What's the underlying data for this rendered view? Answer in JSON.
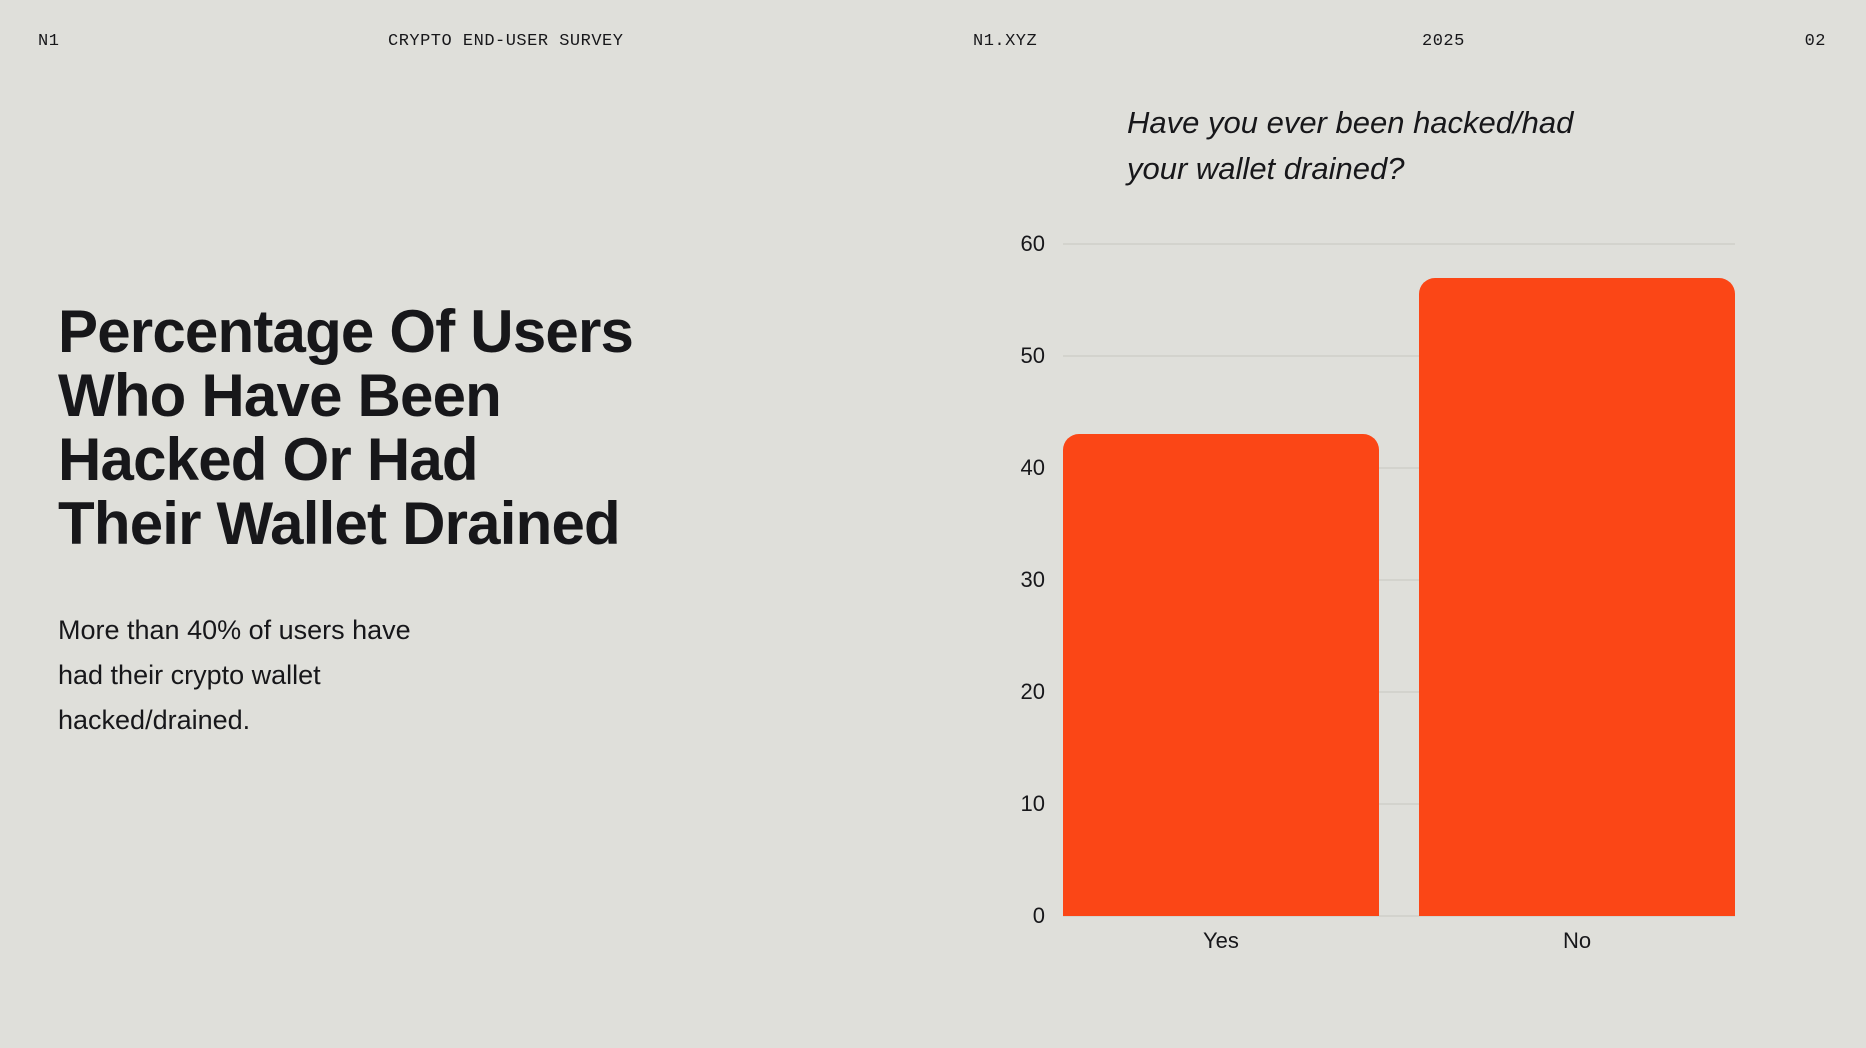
{
  "header": {
    "brand": "N1",
    "survey_title": "CRYPTO END-USER SURVEY",
    "website": "N1.XYZ",
    "year": "2025",
    "page_number": "02"
  },
  "main": {
    "title_lines": [
      "Percentage Of Users",
      "Who Have Been",
      "Hacked Or Had",
      "Their Wallet Drained"
    ],
    "subtitle_lines": [
      "More than 40% of users have",
      "had their crypto wallet",
      "hacked/drained."
    ]
  },
  "chart_data": {
    "type": "bar",
    "title": "Have you ever been hacked/had your wallet drained?",
    "title_lines": [
      "Have you ever been hacked/had",
      "your wallet drained?"
    ],
    "categories": [
      "Yes",
      "No"
    ],
    "values": [
      43,
      57
    ],
    "ylim": [
      0,
      60
    ],
    "yticks": [
      0,
      10,
      20,
      30,
      40,
      50,
      60
    ],
    "xlabel": "",
    "ylabel": "",
    "grid": true,
    "legend": false,
    "bar_color": "#FB4616"
  },
  "colors": {
    "background": "#DFDFDA",
    "text": "#17171A",
    "accent": "#FB4616",
    "gridline": "#C7C7C0"
  }
}
